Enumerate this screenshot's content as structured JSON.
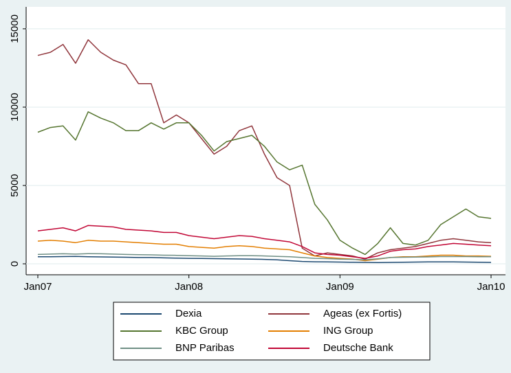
{
  "chart_data": {
    "type": "line",
    "x": [
      "2007-01",
      "2007-02",
      "2007-03",
      "2007-04",
      "2007-05",
      "2007-06",
      "2007-07",
      "2007-08",
      "2007-09",
      "2007-10",
      "2007-11",
      "2007-12",
      "2008-01",
      "2008-02",
      "2008-03",
      "2008-04",
      "2008-05",
      "2008-06",
      "2008-07",
      "2008-08",
      "2008-09",
      "2008-10",
      "2008-11",
      "2008-12",
      "2009-01",
      "2009-02",
      "2009-03",
      "2009-04",
      "2009-05",
      "2009-06",
      "2009-07",
      "2009-08",
      "2009-09",
      "2009-10",
      "2009-11",
      "2009-12",
      "2010-01"
    ],
    "series": [
      {
        "name": "Dexia",
        "color": "#1a476f",
        "values": [
          450,
          450,
          460,
          470,
          450,
          440,
          430,
          420,
          400,
          400,
          380,
          360,
          350,
          340,
          330,
          320,
          310,
          300,
          280,
          250,
          200,
          150,
          130,
          120,
          110,
          100,
          90,
          80,
          90,
          100,
          110,
          120,
          120,
          120,
          110,
          100,
          90
        ]
      },
      {
        "name": "Ageas (ex Fortis)",
        "color": "#90353b",
        "values": [
          13300,
          13500,
          14000,
          12800,
          14300,
          13500,
          13000,
          12700,
          11500,
          11500,
          9000,
          9500,
          9000,
          8000,
          7000,
          7500,
          8500,
          8800,
          7000,
          5500,
          5000,
          1000,
          500,
          700,
          600,
          500,
          300,
          700,
          900,
          1000,
          1100,
          1300,
          1500,
          1600,
          1500,
          1400,
          1350
        ]
      },
      {
        "name": "KBC Group",
        "color": "#55752f",
        "values": [
          8400,
          8700,
          8800,
          7900,
          9700,
          9300,
          9000,
          8500,
          8500,
          9000,
          8600,
          9000,
          9000,
          8200,
          7200,
          7800,
          8000,
          8200,
          7500,
          6500,
          6000,
          6300,
          3800,
          2800,
          1500,
          1000,
          600,
          1300,
          2300,
          1300,
          1200,
          1500,
          2500,
          3000,
          3500,
          3000,
          2900
        ]
      },
      {
        "name": "ING Group",
        "color": "#e37e00",
        "values": [
          1450,
          1500,
          1450,
          1350,
          1500,
          1450,
          1450,
          1400,
          1350,
          1300,
          1250,
          1250,
          1100,
          1050,
          1000,
          1100,
          1150,
          1100,
          1000,
          950,
          900,
          700,
          500,
          400,
          350,
          300,
          200,
          300,
          400,
          450,
          450,
          500,
          550,
          550,
          500,
          500,
          480
        ]
      },
      {
        "name": "BNP Paribas",
        "color": "#6e8e84",
        "values": [
          600,
          620,
          640,
          620,
          650,
          640,
          620,
          600,
          580,
          570,
          550,
          540,
          520,
          500,
          480,
          500,
          520,
          520,
          500,
          470,
          450,
          400,
          350,
          330,
          300,
          280,
          250,
          320,
          400,
          420,
          430,
          440,
          460,
          460,
          460,
          450,
          450
        ]
      },
      {
        "name": "Deutsche Bank",
        "color": "#c10534",
        "values": [
          2100,
          2200,
          2300,
          2100,
          2450,
          2400,
          2350,
          2200,
          2150,
          2100,
          2000,
          2000,
          1800,
          1700,
          1600,
          1700,
          1800,
          1750,
          1600,
          1500,
          1400,
          1100,
          700,
          600,
          550,
          450,
          350,
          500,
          800,
          900,
          950,
          1100,
          1200,
          1300,
          1250,
          1200,
          1150
        ]
      }
    ],
    "ylim": [
      -700,
      16400
    ],
    "yticks": [
      0,
      5000,
      10000,
      15000
    ],
    "xticks": [
      {
        "value": "2007-01",
        "label": "Jan07"
      },
      {
        "value": "2008-01",
        "label": "Jan08"
      },
      {
        "value": "2009-01",
        "label": "Jan09"
      },
      {
        "value": "2010-01",
        "label": "Jan10"
      }
    ],
    "grid": true,
    "legend": "bottom"
  }
}
